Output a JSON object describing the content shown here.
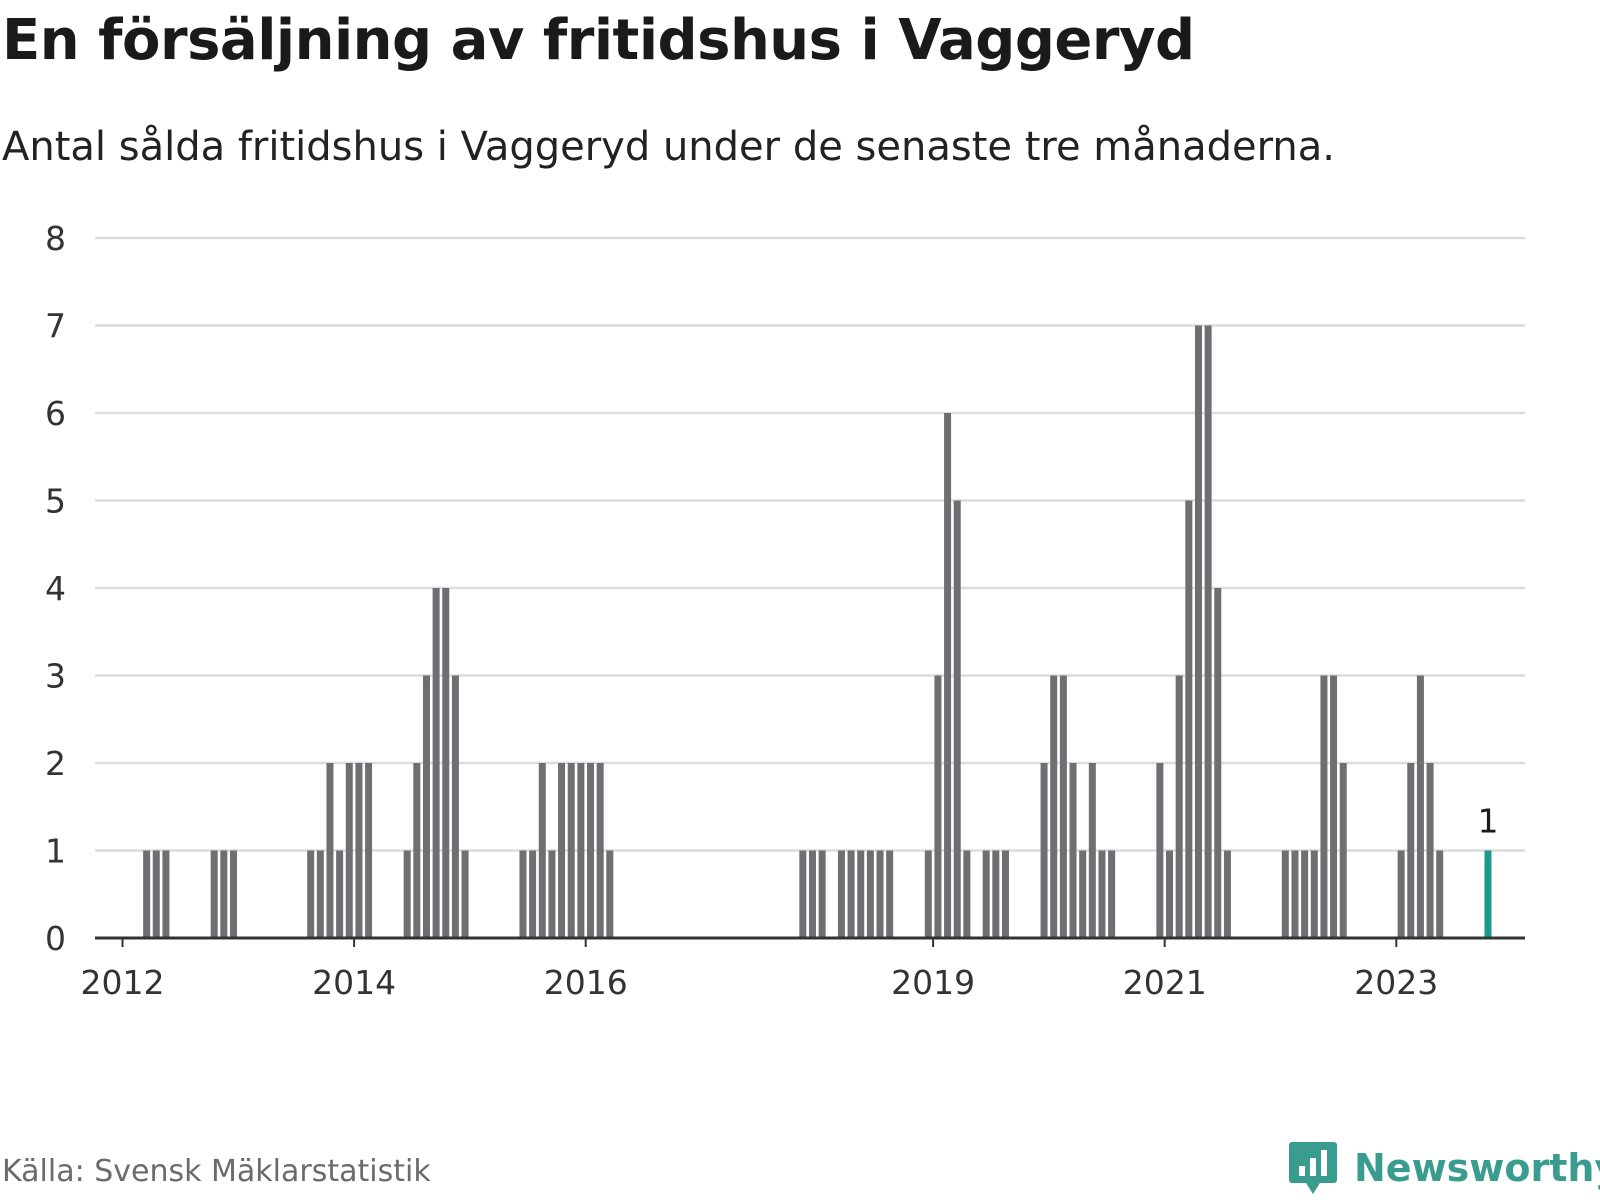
{
  "header": {
    "title": "En försäljning av fritidshus i Vaggeryd",
    "subtitle": "Antal sålda fritidshus i Vaggeryd under de senaste tre månaderna."
  },
  "footer": {
    "source": "Källa: Svensk Mäklarstatistik",
    "brand": "Newsworthy"
  },
  "colors": {
    "bar": "#6e6e73",
    "highlight": "#1a9a8c",
    "grid": "#dcdcdc",
    "axis": "#333333",
    "brand": "#3a9c8e"
  },
  "icons": {
    "brand_logo": "newsworthy-chart-bubble-icon"
  },
  "chart_data": {
    "type": "bar",
    "title": "En försäljning av fritidshus i Vaggeryd",
    "subtitle": "Antal sålda fritidshus i Vaggeryd under de senaste tre månaderna.",
    "xlabel": "",
    "ylabel": "",
    "ylim": [
      0,
      8
    ],
    "yticks": [
      0,
      1,
      2,
      3,
      4,
      5,
      6,
      7,
      8
    ],
    "xticks": [
      "2012",
      "2014",
      "2016",
      "2019",
      "2021",
      "2023"
    ],
    "grid": true,
    "highlight_last": true,
    "data_label": "1",
    "series": [
      {
        "values": [
          {
            "x": "2012-01",
            "y": 0
          },
          {
            "x": "2012-02",
            "y": 0
          },
          {
            "x": "2012-03",
            "y": 1
          },
          {
            "x": "2012-04",
            "y": 1
          },
          {
            "x": "2012-05",
            "y": 1
          },
          {
            "x": "2012-06",
            "y": 0
          },
          {
            "x": "2012-07",
            "y": 0
          },
          {
            "x": "2012-08",
            "y": 0
          },
          {
            "x": "2012-09",
            "y": 0
          },
          {
            "x": "2012-10",
            "y": 1
          },
          {
            "x": "2012-11",
            "y": 1
          },
          {
            "x": "2012-12",
            "y": 1
          },
          {
            "x": "2013-01",
            "y": 0
          },
          {
            "x": "2013-02",
            "y": 0
          },
          {
            "x": "2013-03",
            "y": 0
          },
          {
            "x": "2013-04",
            "y": 0
          },
          {
            "x": "2013-05",
            "y": 0
          },
          {
            "x": "2013-06",
            "y": 0
          },
          {
            "x": "2013-07",
            "y": 0
          },
          {
            "x": "2013-08",
            "y": 1
          },
          {
            "x": "2013-09",
            "y": 1
          },
          {
            "x": "2013-10",
            "y": 2
          },
          {
            "x": "2013-11",
            "y": 1
          },
          {
            "x": "2013-12",
            "y": 2
          },
          {
            "x": "2014-01",
            "y": 2
          },
          {
            "x": "2014-02",
            "y": 2
          },
          {
            "x": "2014-03",
            "y": 0
          },
          {
            "x": "2014-04",
            "y": 0
          },
          {
            "x": "2014-05",
            "y": 0
          },
          {
            "x": "2014-06",
            "y": 1
          },
          {
            "x": "2014-07",
            "y": 2
          },
          {
            "x": "2014-08",
            "y": 3
          },
          {
            "x": "2014-09",
            "y": 4
          },
          {
            "x": "2014-10",
            "y": 4
          },
          {
            "x": "2014-11",
            "y": 3
          },
          {
            "x": "2014-12",
            "y": 1
          },
          {
            "x": "2015-01",
            "y": 0
          },
          {
            "x": "2015-02",
            "y": 0
          },
          {
            "x": "2015-03",
            "y": 0
          },
          {
            "x": "2015-04",
            "y": 0
          },
          {
            "x": "2015-05",
            "y": 0
          },
          {
            "x": "2015-06",
            "y": 1
          },
          {
            "x": "2015-07",
            "y": 1
          },
          {
            "x": "2015-08",
            "y": 2
          },
          {
            "x": "2015-09",
            "y": 1
          },
          {
            "x": "2015-10",
            "y": 2
          },
          {
            "x": "2015-11",
            "y": 2
          },
          {
            "x": "2015-12",
            "y": 2
          },
          {
            "x": "2016-01",
            "y": 2
          },
          {
            "x": "2016-02",
            "y": 2
          },
          {
            "x": "2016-03",
            "y": 1
          },
          {
            "x": "2016-04",
            "y": 0
          },
          {
            "x": "2017-11",
            "y": 1
          },
          {
            "x": "2017-12",
            "y": 1
          },
          {
            "x": "2018-01",
            "y": 1
          },
          {
            "x": "2018-02",
            "y": 0
          },
          {
            "x": "2018-03",
            "y": 1
          },
          {
            "x": "2018-04",
            "y": 1
          },
          {
            "x": "2018-05",
            "y": 1
          },
          {
            "x": "2018-06",
            "y": 1
          },
          {
            "x": "2018-07",
            "y": 1
          },
          {
            "x": "2018-08",
            "y": 1
          },
          {
            "x": "2018-09",
            "y": 0
          },
          {
            "x": "2018-10",
            "y": 0
          },
          {
            "x": "2018-11",
            "y": 0
          },
          {
            "x": "2018-12",
            "y": 1
          },
          {
            "x": "2019-01",
            "y": 3
          },
          {
            "x": "2019-02",
            "y": 6
          },
          {
            "x": "2019-03",
            "y": 5
          },
          {
            "x": "2019-04",
            "y": 1
          },
          {
            "x": "2019-05",
            "y": 0
          },
          {
            "x": "2019-06",
            "y": 1
          },
          {
            "x": "2019-07",
            "y": 1
          },
          {
            "x": "2019-08",
            "y": 1
          },
          {
            "x": "2019-09",
            "y": 0
          },
          {
            "x": "2019-10",
            "y": 0
          },
          {
            "x": "2019-11",
            "y": 0
          },
          {
            "x": "2019-12",
            "y": 2
          },
          {
            "x": "2020-01",
            "y": 3
          },
          {
            "x": "2020-02",
            "y": 3
          },
          {
            "x": "2020-03",
            "y": 2
          },
          {
            "x": "2020-04",
            "y": 1
          },
          {
            "x": "2020-05",
            "y": 2
          },
          {
            "x": "2020-06",
            "y": 1
          },
          {
            "x": "2020-07",
            "y": 1
          },
          {
            "x": "2020-08",
            "y": 0
          },
          {
            "x": "2020-09",
            "y": 0
          },
          {
            "x": "2020-10",
            "y": 0
          },
          {
            "x": "2020-11",
            "y": 0
          },
          {
            "x": "2020-12",
            "y": 2
          },
          {
            "x": "2021-01",
            "y": 1
          },
          {
            "x": "2021-02",
            "y": 3
          },
          {
            "x": "2021-03",
            "y": 5
          },
          {
            "x": "2021-04",
            "y": 7
          },
          {
            "x": "2021-05",
            "y": 7
          },
          {
            "x": "2021-06",
            "y": 4
          },
          {
            "x": "2021-07",
            "y": 1
          },
          {
            "x": "2021-08",
            "y": 0
          },
          {
            "x": "2021-09",
            "y": 0
          },
          {
            "x": "2021-10",
            "y": 0
          },
          {
            "x": "2021-11",
            "y": 0
          },
          {
            "x": "2021-12",
            "y": 0
          },
          {
            "x": "2022-01",
            "y": 1
          },
          {
            "x": "2022-02",
            "y": 1
          },
          {
            "x": "2022-03",
            "y": 1
          },
          {
            "x": "2022-04",
            "y": 1
          },
          {
            "x": "2022-05",
            "y": 3
          },
          {
            "x": "2022-06",
            "y": 3
          },
          {
            "x": "2022-07",
            "y": 2
          },
          {
            "x": "2022-08",
            "y": 0
          },
          {
            "x": "2022-09",
            "y": 0
          },
          {
            "x": "2022-10",
            "y": 0
          },
          {
            "x": "2022-11",
            "y": 0
          },
          {
            "x": "2022-12",
            "y": 0
          },
          {
            "x": "2023-01",
            "y": 1
          },
          {
            "x": "2023-02",
            "y": 2
          },
          {
            "x": "2023-03",
            "y": 3
          },
          {
            "x": "2023-04",
            "y": 2
          },
          {
            "x": "2023-05",
            "y": 1
          },
          {
            "x": "2023-06",
            "y": 0
          },
          {
            "x": "2023-07",
            "y": 0
          },
          {
            "x": "2023-08",
            "y": 0
          },
          {
            "x": "2023-09",
            "y": 0
          },
          {
            "x": "2023-10",
            "y": 1
          }
        ]
      }
    ]
  }
}
